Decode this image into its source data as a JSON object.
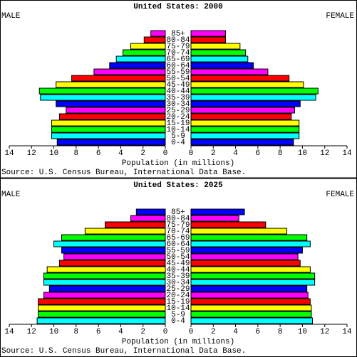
{
  "chart_data": [
    {
      "type": "pyramid",
      "title": "United States: 2000",
      "categories": [
        "0-4",
        "5-9",
        "10-14",
        "15-19",
        "20-24",
        "25-29",
        "30-34",
        "35-39",
        "40-44",
        "45-49",
        "50-54",
        "55-59",
        "60-64",
        "65-69",
        "70-74",
        "75-79",
        "80-84",
        "85+"
      ],
      "colors": [
        "#0000ff",
        "#00ffff",
        "#00ff00",
        "#ffff00",
        "#ff0000",
        "#ff00ff",
        "#0000ff",
        "#00ffff",
        "#00ff00",
        "#ffff00",
        "#ff0000",
        "#ff00ff",
        "#0000ff",
        "#00ffff",
        "#00ff00",
        "#ffff00",
        "#ff0000",
        "#ff00ff"
      ],
      "series": [
        {
          "name": "MALE",
          "side": "left",
          "values": [
            9.7,
            10.2,
            10.2,
            10.2,
            9.5,
            8.9,
            9.8,
            11.2,
            11.3,
            9.8,
            8.4,
            6.4,
            5.0,
            4.4,
            3.8,
            3.1,
            1.9,
            1.3
          ]
        },
        {
          "name": "FEMALE",
          "side": "right",
          "values": [
            9.2,
            9.7,
            9.7,
            9.7,
            9.0,
            9.3,
            9.8,
            11.2,
            11.4,
            10.1,
            8.8,
            6.9,
            5.6,
            5.1,
            4.9,
            4.4,
            3.1,
            3.1
          ]
        }
      ],
      "xlim": [
        0,
        14
      ],
      "xticks": [
        0,
        2,
        4,
        6,
        8,
        10,
        12,
        14
      ],
      "xlabel": "Population (in millions)",
      "source": "Source: U.S. Census Bureau, International Data Base."
    },
    {
      "type": "pyramid",
      "title": "United States: 2025",
      "categories": [
        "0-4",
        "5-9",
        "10-14",
        "15-19",
        "20-24",
        "25-29",
        "30-34",
        "35-39",
        "40-44",
        "45-49",
        "50-54",
        "55-59",
        "60-64",
        "65-69",
        "70-74",
        "75-79",
        "80-84",
        "85+"
      ],
      "colors": [
        "#00ffff",
        "#00ff00",
        "#ffff00",
        "#ff0000",
        "#ff00ff",
        "#0000ff",
        "#00ffff",
        "#00ff00",
        "#ffff00",
        "#ff0000",
        "#ff00ff",
        "#0000ff",
        "#00ffff",
        "#00ff00",
        "#ffff00",
        "#ff0000",
        "#ff00ff",
        "#0000ff"
      ],
      "series": [
        {
          "name": "MALE",
          "side": "left",
          "values": [
            11.5,
            11.4,
            11.4,
            11.4,
            10.9,
            10.4,
            10.9,
            10.9,
            10.6,
            9.5,
            9.1,
            9.3,
            10.0,
            9.3,
            7.2,
            5.4,
            3.1,
            2.6
          ]
        },
        {
          "name": "FEMALE",
          "side": "right",
          "values": [
            10.9,
            10.8,
            10.8,
            10.7,
            10.5,
            10.4,
            11.1,
            11.1,
            10.7,
            9.8,
            9.6,
            10.0,
            10.7,
            10.4,
            8.6,
            6.7,
            4.3,
            4.8
          ]
        }
      ],
      "xlim": [
        0,
        14
      ],
      "xticks": [
        0,
        2,
        4,
        6,
        8,
        10,
        12,
        14
      ],
      "xlabel": "Population (in millions)",
      "source": "Source: U.S. Census Bureau, International Data Base."
    }
  ]
}
